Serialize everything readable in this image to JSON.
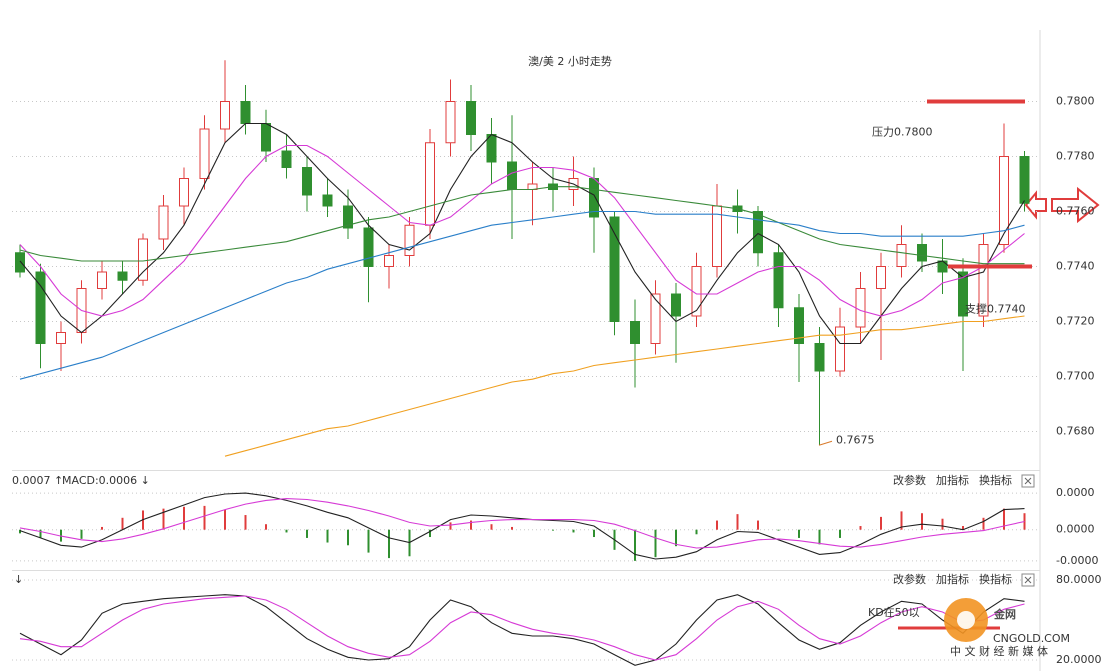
{
  "chart_data": [
    {
      "type": "candlestick",
      "title": "澳/美 2 小时走势",
      "ylim": [
        0.7666,
        0.7826
      ],
      "yticks": [
        {
          "value": 0.78,
          "label": "0.7800"
        },
        {
          "value": 0.778,
          "label": "0.7780"
        },
        {
          "value": 0.776,
          "label": "0.7760"
        },
        {
          "value": 0.774,
          "label": "0.7740"
        },
        {
          "value": 0.772,
          "label": "0.7720"
        },
        {
          "value": 0.77,
          "label": "0.7700"
        },
        {
          "value": 0.768,
          "label": "0.7680"
        }
      ],
      "grid": true,
      "up_color": "#e03c3c",
      "down_color": "#2f8f2f",
      "candles": {
        "open": [
          0.7745,
          0.7738,
          0.7712,
          0.7716,
          0.7732,
          0.7738,
          0.7735,
          0.775,
          0.7762,
          0.7772,
          0.779,
          0.78,
          0.7792,
          0.7782,
          0.7776,
          0.7766,
          0.7762,
          0.7754,
          0.774,
          0.7744,
          0.7755,
          0.7785,
          0.78,
          0.7788,
          0.7778,
          0.7768,
          0.777,
          0.7768,
          0.7772,
          0.7758,
          0.772,
          0.7712,
          0.773,
          0.7722,
          0.774,
          0.7762,
          0.776,
          0.7745,
          0.7725,
          0.7712,
          0.7702,
          0.7718,
          0.7732,
          0.774,
          0.7748,
          0.7742,
          0.7738,
          0.7722,
          0.7748,
          0.778
        ],
        "high": [
          0.7748,
          0.7741,
          0.772,
          0.7735,
          0.7742,
          0.7742,
          0.7752,
          0.7766,
          0.7776,
          0.7795,
          0.7815,
          0.7806,
          0.7797,
          0.7788,
          0.778,
          0.7772,
          0.7768,
          0.7758,
          0.7748,
          0.7758,
          0.779,
          0.7808,
          0.7806,
          0.7794,
          0.7795,
          0.7778,
          0.7776,
          0.778,
          0.7776,
          0.776,
          0.7728,
          0.7735,
          0.7734,
          0.7745,
          0.777,
          0.7768,
          0.7762,
          0.7748,
          0.773,
          0.7718,
          0.7725,
          0.7738,
          0.7745,
          0.7755,
          0.7752,
          0.775,
          0.7743,
          0.7752,
          0.7792,
          0.7782
        ],
        "low": [
          0.7736,
          0.7703,
          0.7702,
          0.7712,
          0.7728,
          0.773,
          0.7733,
          0.7746,
          0.7755,
          0.7768,
          0.7785,
          0.7788,
          0.7778,
          0.7772,
          0.776,
          0.7758,
          0.775,
          0.7727,
          0.7732,
          0.774,
          0.775,
          0.778,
          0.7782,
          0.777,
          0.775,
          0.7755,
          0.776,
          0.7762,
          0.7745,
          0.7715,
          0.7696,
          0.7708,
          0.7705,
          0.7718,
          0.7736,
          0.7752,
          0.774,
          0.7718,
          0.7698,
          0.7675,
          0.77,
          0.7712,
          0.7706,
          0.7736,
          0.7738,
          0.773,
          0.7702,
          0.7718,
          0.7745,
          0.776
        ],
        "close": [
          0.7738,
          0.7712,
          0.7716,
          0.7732,
          0.7738,
          0.7735,
          0.775,
          0.7762,
          0.7772,
          0.779,
          0.78,
          0.7792,
          0.7782,
          0.7776,
          0.7766,
          0.7762,
          0.7754,
          0.774,
          0.7744,
          0.7755,
          0.7785,
          0.78,
          0.7788,
          0.7778,
          0.7768,
          0.777,
          0.7768,
          0.7772,
          0.7758,
          0.772,
          0.7712,
          0.773,
          0.7722,
          0.774,
          0.7762,
          0.776,
          0.7745,
          0.7725,
          0.7712,
          0.7702,
          0.7718,
          0.7732,
          0.774,
          0.7748,
          0.7742,
          0.7738,
          0.7722,
          0.7748,
          0.778,
          0.7763
        ]
      },
      "moving_averages": [
        {
          "color": "#222222",
          "values": [
            0.7742,
            0.7733,
            0.7722,
            0.7716,
            0.7722,
            0.773,
            0.7738,
            0.7745,
            0.7755,
            0.777,
            0.7785,
            0.7792,
            0.7792,
            0.7788,
            0.778,
            0.7772,
            0.7765,
            0.7755,
            0.7748,
            0.7746,
            0.7752,
            0.7768,
            0.778,
            0.7788,
            0.7785,
            0.7778,
            0.7772,
            0.777,
            0.7766,
            0.7752,
            0.7738,
            0.7728,
            0.772,
            0.7724,
            0.7735,
            0.7745,
            0.7752,
            0.7748,
            0.7738,
            0.7722,
            0.7712,
            0.7712,
            0.7722,
            0.7732,
            0.774,
            0.7742,
            0.7736,
            0.7738,
            0.7752,
            0.7764
          ]
        },
        {
          "color": "#d63ad6",
          "values": [
            0.7748,
            0.774,
            0.773,
            0.7724,
            0.7722,
            0.7724,
            0.7728,
            0.7735,
            0.7742,
            0.7752,
            0.7762,
            0.7772,
            0.778,
            0.7784,
            0.7784,
            0.778,
            0.7774,
            0.7768,
            0.7762,
            0.7756,
            0.7755,
            0.7758,
            0.7764,
            0.777,
            0.7774,
            0.7776,
            0.7776,
            0.7775,
            0.7772,
            0.7765,
            0.7755,
            0.7745,
            0.7735,
            0.773,
            0.773,
            0.7734,
            0.7738,
            0.774,
            0.774,
            0.7735,
            0.7728,
            0.7724,
            0.7722,
            0.7724,
            0.7728,
            0.7734,
            0.7736,
            0.774,
            0.7746,
            0.7752
          ]
        },
        {
          "color": "#3a8a3a",
          "values": [
            0.7746,
            0.7744,
            0.7743,
            0.7742,
            0.7742,
            0.7742,
            0.7742,
            0.7743,
            0.7744,
            0.7745,
            0.7746,
            0.7747,
            0.7748,
            0.7749,
            0.7751,
            0.7753,
            0.7755,
            0.7757,
            0.7758,
            0.776,
            0.7762,
            0.7764,
            0.7766,
            0.7767,
            0.7768,
            0.7768,
            0.7769,
            0.7769,
            0.7768,
            0.7767,
            0.7766,
            0.7765,
            0.7764,
            0.7763,
            0.7762,
            0.7761,
            0.7759,
            0.7756,
            0.7753,
            0.775,
            0.7748,
            0.7747,
            0.7746,
            0.7745,
            0.7744,
            0.7743,
            0.7742,
            0.7741,
            0.7741,
            0.7741
          ]
        },
        {
          "color": "#2a7fc9",
          "values": [
            0.7699,
            0.7701,
            0.7703,
            0.7705,
            0.7707,
            0.771,
            0.7713,
            0.7716,
            0.7719,
            0.7722,
            0.7725,
            0.7728,
            0.7731,
            0.7734,
            0.7736,
            0.7739,
            0.7741,
            0.7743,
            0.7745,
            0.7747,
            0.7749,
            0.7751,
            0.7753,
            0.7755,
            0.7756,
            0.7757,
            0.7758,
            0.7759,
            0.776,
            0.776,
            0.776,
            0.7759,
            0.7759,
            0.7759,
            0.7759,
            0.7758,
            0.7757,
            0.7756,
            0.7755,
            0.7753,
            0.7752,
            0.7752,
            0.7751,
            0.7751,
            0.7751,
            0.7751,
            0.7751,
            0.7752,
            0.7753,
            0.7755
          ]
        },
        {
          "color": "#f0a020",
          "values": [
            null,
            null,
            null,
            null,
            null,
            null,
            null,
            null,
            null,
            null,
            0.7671,
            0.7673,
            0.7675,
            0.7677,
            0.7679,
            0.7681,
            0.7682,
            0.7684,
            0.7686,
            0.7688,
            0.769,
            0.7692,
            0.7694,
            0.7696,
            0.7698,
            0.7699,
            0.7701,
            0.7702,
            0.7704,
            0.7705,
            0.7706,
            0.7707,
            0.7708,
            0.7709,
            0.771,
            0.7711,
            0.7712,
            0.7713,
            0.7714,
            0.7715,
            0.7715,
            0.7716,
            0.7717,
            0.7717,
            0.7718,
            0.7719,
            0.772,
            0.772,
            0.7721,
            0.7722
          ]
        }
      ],
      "resistance": {
        "value": 0.78,
        "label": "压力0.7800"
      },
      "support": {
        "value": 0.774,
        "label": "支撑0.7740"
      },
      "low_annotation": 0.7675
    },
    {
      "type": "macd",
      "header": [
        "0.0007 ↑",
        "MACD:0.0006 ↓"
      ],
      "controls": [
        "改参数",
        "加指标",
        "换指标"
      ],
      "ylim": [
        -4.4e-05,
        6.3e-05
      ],
      "yticks": [
        {
          "value": 4e-05,
          "label": "0.0000"
        },
        {
          "value": 0,
          "label": "0.0000"
        },
        {
          "value": -3.4e-05,
          "label": "-0.0000"
        }
      ],
      "grid": true,
      "up_color": "#e03c3c",
      "down_color": "#2f8f2f",
      "histogram": [
        -4e-06,
        -9e-06,
        -1.3e-05,
        -1e-05,
        3e-06,
        1.3e-05,
        2.1e-05,
        2.3e-05,
        2.5e-05,
        2.6e-05,
        2.2e-05,
        1.6e-05,
        6e-06,
        -3e-06,
        -9e-06,
        -1.4e-05,
        -1.7e-05,
        -2.5e-05,
        -3.1e-05,
        -2.9e-05,
        -8e-06,
        8e-06,
        1e-05,
        6e-06,
        3e-06,
        0,
        -1e-06,
        -3e-06,
        -8e-06,
        -2.2e-05,
        -3.4e-05,
        -3e-05,
        -1.8e-05,
        -5e-06,
        1e-05,
        1.7e-05,
        1e-05,
        -1e-06,
        -9e-06,
        -1.6e-05,
        -9e-06,
        4e-06,
        1.4e-05,
        2e-05,
        1.8e-05,
        1.2e-05,
        4e-06,
        1.3e-05,
        2.3e-05,
        1.8e-05
      ],
      "series": [
        {
          "color": "#222222",
          "values": [
            -1e-06,
            -9e-06,
            -1.7e-05,
            -1.9e-05,
            -1.1e-05,
            0,
            1.1e-05,
            1.9e-05,
            2.7e-05,
            3.5e-05,
            3.9e-05,
            4e-05,
            3.7e-05,
            3.2e-05,
            2.6e-05,
            1.9e-05,
            1.3e-05,
            2e-06,
            -9e-06,
            -1.4e-05,
            -2e-06,
            1.1e-05,
            1.6e-05,
            1.5e-05,
            1.3e-05,
            1.1e-05,
            1e-05,
            9e-06,
            4e-06,
            -1.1e-05,
            -2.7e-05,
            -3.2e-05,
            -3e-05,
            -2.4e-05,
            -1.1e-05,
            -2e-06,
            -3e-06,
            -1.1e-05,
            -1.9e-05,
            -2.7e-05,
            -2.5e-05,
            -1.6e-05,
            -5e-06,
            3e-06,
            6e-06,
            4e-06,
            0,
            9e-06,
            2.2e-05,
            2.3e-05
          ]
        },
        {
          "color": "#d63ad6",
          "values": [
            2e-06,
            -2e-06,
            -7e-06,
            -1.1e-05,
            -1.3e-05,
            -1e-05,
            -5e-06,
            1e-06,
            8e-06,
            1.5e-05,
            2.2e-05,
            2.8e-05,
            3.2e-05,
            3.4e-05,
            3.3e-05,
            3e-05,
            2.6e-05,
            2.1e-05,
            1.5e-05,
            8e-06,
            4e-06,
            5e-06,
            8e-06,
            1e-05,
            1.1e-05,
            1.1e-05,
            1.1e-05,
            1.1e-05,
            1e-05,
            6e-06,
            -1e-06,
            -9e-06,
            -1.6e-05,
            -2e-05,
            -1.9e-05,
            -1.5e-05,
            -1.1e-05,
            -1e-05,
            -1.2e-05,
            -1.5e-05,
            -1.8e-05,
            -1.9e-05,
            -1.6e-05,
            -1.2e-05,
            -8e-06,
            -5e-06,
            -3e-06,
            -1e-06,
            4e-06,
            9e-06
          ]
        }
      ]
    },
    {
      "type": "line",
      "header": [
        "↓"
      ],
      "controls": [
        "改参数",
        "加指标",
        "换指标"
      ],
      "ylim": [
        14,
        86
      ],
      "yticks": [
        {
          "value": 80,
          "label": "80.0000"
        },
        {
          "value": 20,
          "label": "20.0000"
        }
      ],
      "grid": true,
      "annotation": "KD在50以",
      "watermark": {
        "brand": "金网",
        "site": "CNGOLD.COM",
        "slogan": "中 文 财 经 新 媒 体"
      },
      "series": [
        {
          "color": "#222222",
          "values": [
            40,
            32,
            24,
            35,
            55,
            62,
            64,
            66,
            67,
            68,
            69,
            68,
            60,
            48,
            36,
            28,
            22,
            20,
            21,
            30,
            50,
            65,
            60,
            48,
            40,
            38,
            38,
            36,
            32,
            24,
            16,
            20,
            32,
            50,
            65,
            69,
            62,
            48,
            35,
            28,
            33,
            46,
            56,
            64,
            62,
            50,
            40,
            56,
            66,
            64
          ]
        },
        {
          "color": "#d63ad6",
          "values": [
            36,
            34,
            30,
            30,
            40,
            50,
            58,
            62,
            64,
            66,
            67,
            68,
            65,
            58,
            48,
            38,
            30,
            25,
            22,
            24,
            34,
            48,
            56,
            54,
            48,
            43,
            40,
            38,
            35,
            30,
            24,
            20,
            24,
            36,
            50,
            60,
            64,
            58,
            46,
            36,
            32,
            38,
            48,
            56,
            60,
            56,
            48,
            50,
            58,
            62
          ]
        }
      ]
    }
  ]
}
